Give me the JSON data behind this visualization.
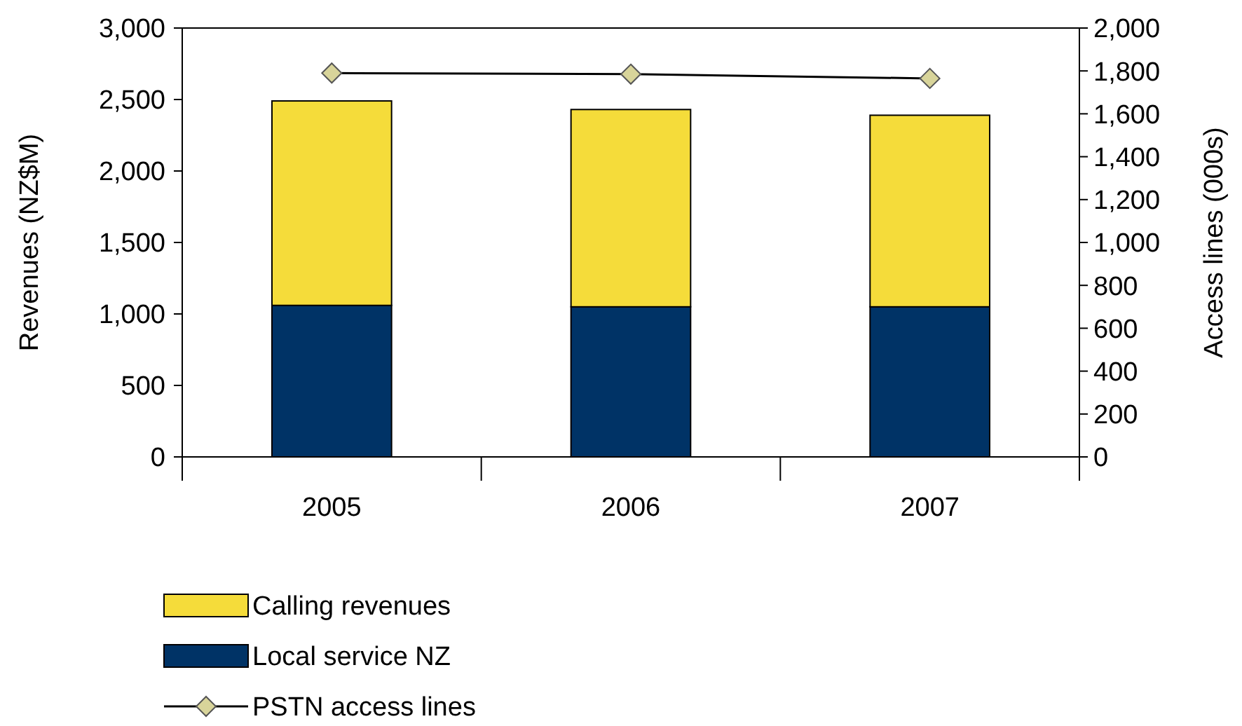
{
  "chart_data": {
    "type": "bar",
    "stacked": true,
    "categories": [
      "2005",
      "2006",
      "2007"
    ],
    "ylabel": "Revenues (NZ$M)",
    "y2label": "Access lines (000s)",
    "ylim": [
      0,
      3000
    ],
    "yticks": [
      {
        "value": 0,
        "label": "0"
      },
      {
        "value": 500,
        "label": "500"
      },
      {
        "value": 1000,
        "label": "1,000"
      },
      {
        "value": 1500,
        "label": "1,500"
      },
      {
        "value": 2000,
        "label": "2,000"
      },
      {
        "value": 2500,
        "label": "2,500"
      },
      {
        "value": 3000,
        "label": "3,000"
      }
    ],
    "y2lim": [
      0,
      2000
    ],
    "y2ticks": [
      {
        "value": 0,
        "label": "0"
      },
      {
        "value": 200,
        "label": "200"
      },
      {
        "value": 400,
        "label": "400"
      },
      {
        "value": 600,
        "label": "600"
      },
      {
        "value": 800,
        "label": "800"
      },
      {
        "value": 1000,
        "label": "1,000"
      },
      {
        "value": 1200,
        "label": "1,200"
      },
      {
        "value": 1400,
        "label": "1,400"
      },
      {
        "value": 1600,
        "label": "1,600"
      },
      {
        "value": 1800,
        "label": "1,800"
      },
      {
        "value": 2000,
        "label": "2,000"
      }
    ],
    "legend": "bottom",
    "grid": false,
    "series": [
      {
        "name": "Local service NZ",
        "color": "#003366",
        "values": [
          1060,
          1050,
          1050
        ]
      },
      {
        "name": "Calling revenues",
        "color": "#f5dc3a",
        "values": [
          1430,
          1380,
          1340
        ]
      },
      {
        "name": "PSTN access lines",
        "type": "line",
        "axis": "y2",
        "color": "#000000",
        "marker": "diamond",
        "values": [
          1790,
          1785,
          1765
        ]
      }
    ]
  }
}
